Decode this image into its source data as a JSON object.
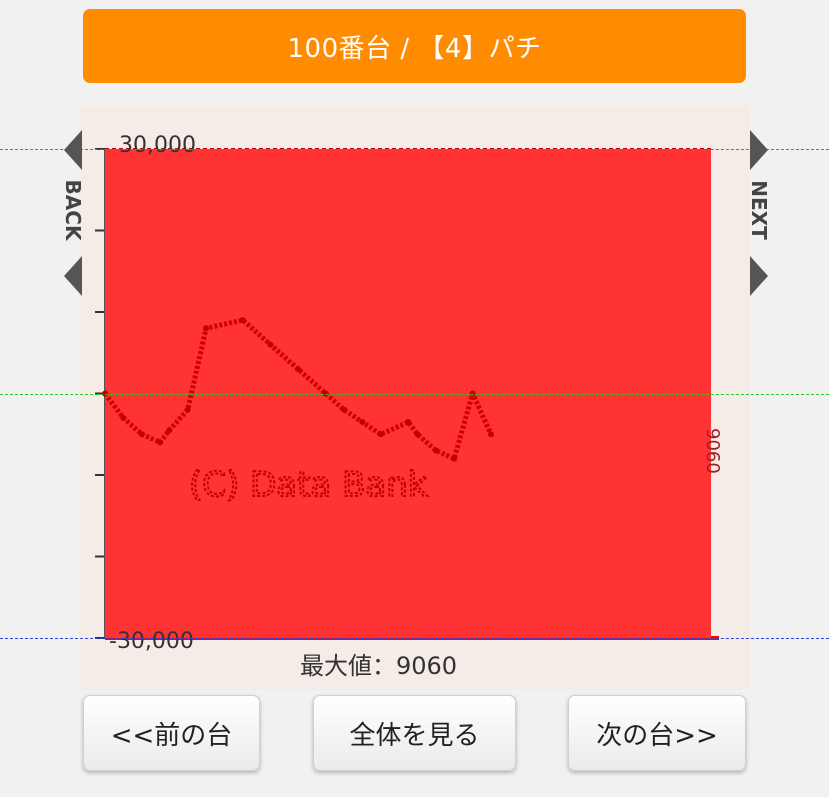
{
  "header": {
    "title": "100番台 / 【4】パチ"
  },
  "nav": {
    "back_label": "BACK",
    "next_label": "NEXT"
  },
  "chart_data": {
    "type": "area",
    "ylim": [
      -30000,
      30000
    ],
    "yticks": [
      -30000,
      -20000,
      -10000,
      0,
      10000,
      20000,
      30000
    ],
    "tick_labels": {
      "top": "30,000",
      "bottom": "-30,000"
    },
    "grid": true,
    "fill_color": "#ff3333",
    "zero_line_color": "#b03030",
    "guide_colors": {
      "upper": "#e04040",
      "zero": "#22cc22",
      "lower": "#3344dd"
    },
    "right_label": "9060",
    "watermark": "(C) Data Bank",
    "series": [
      {
        "x": [
          0,
          4,
          8,
          12,
          14,
          18,
          22,
          30,
          36,
          42,
          48,
          52,
          56,
          60,
          66,
          68,
          72,
          76,
          80,
          84
        ],
        "values": [
          0,
          -3000,
          -5000,
          -6000,
          -4500,
          -2000,
          8000,
          9000,
          6000,
          3000,
          0,
          -2000,
          -3500,
          -5000,
          -3500,
          -5000,
          -7000,
          -8000,
          0,
          -5000
        ]
      }
    ]
  },
  "footer": {
    "max_label": "最大値：9060",
    "prev_button": "<<前の台",
    "all_button": "全体を見る",
    "next_button": "次の台>>"
  }
}
